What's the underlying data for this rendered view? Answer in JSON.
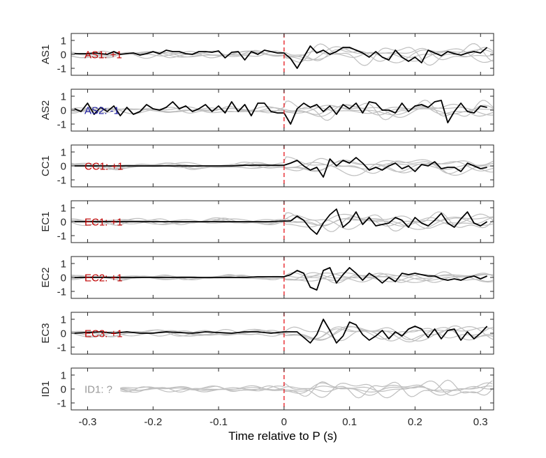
{
  "chart_data": {
    "type": "line",
    "xlabel": "Time relative to P (s)",
    "xlim": [
      -0.325,
      0.32
    ],
    "ylim": [
      -1.5,
      1.5
    ],
    "xticks": [
      -0.3,
      -0.2,
      -0.1,
      0,
      0.1,
      0.2,
      0.3
    ],
    "xtick_labels": [
      "-0.3",
      "-0.2",
      "-0.1",
      "0",
      "0.1",
      "0.2",
      "0.3"
    ],
    "yticks": [
      1,
      0,
      -1
    ],
    "ytick_labels": [
      "1",
      "0",
      "-1"
    ],
    "marker_x": 0,
    "colors": {
      "positive": "#c00000",
      "negative": "#1a1aa0",
      "unknown": "#999999",
      "trace": "#000000",
      "background_traces": "#bfbfbf",
      "marker": "#e8262b"
    },
    "panels": [
      {
        "ylabel": "AS1",
        "annotation": "AS1: +1",
        "annotation_color": "#c00000",
        "x": [
          -0.32,
          -0.31,
          -0.3,
          -0.29,
          -0.28,
          -0.27,
          -0.26,
          -0.25,
          -0.24,
          -0.23,
          -0.22,
          -0.21,
          -0.2,
          -0.19,
          -0.18,
          -0.17,
          -0.16,
          -0.15,
          -0.14,
          -0.13,
          -0.12,
          -0.11,
          -0.1,
          -0.09,
          -0.08,
          -0.07,
          -0.06,
          -0.05,
          -0.04,
          -0.03,
          -0.02,
          -0.01,
          0,
          0.01,
          0.02,
          0.03,
          0.04,
          0.05,
          0.06,
          0.07,
          0.08,
          0.09,
          0.1,
          0.11,
          0.12,
          0.13,
          0.14,
          0.15,
          0.16,
          0.17,
          0.18,
          0.19,
          0.2,
          0.21,
          0.22,
          0.23,
          0.24,
          0.25,
          0.26,
          0.27,
          0.28,
          0.29,
          0.3,
          0.31
        ],
        "y": [
          0.05,
          0.05,
          0.05,
          0.1,
          0.05,
          0,
          0.2,
          0,
          0.05,
          0.1,
          -0.05,
          0.05,
          0.2,
          0.05,
          0.3,
          0.2,
          0.2,
          0.05,
          0,
          0.2,
          0.2,
          0.15,
          0.25,
          -0.25,
          0.15,
          0.2,
          -0.4,
          0.2,
          0,
          0.3,
          0.2,
          0.1,
          0.1,
          -0.3,
          -1,
          -0.2,
          0.6,
          0.1,
          0.3,
          0,
          0.2,
          0.5,
          0.5,
          0.3,
          0.1,
          -0.2,
          0.2,
          -0.2,
          -0.4,
          0.3,
          -0.2,
          -0.5,
          -0.2,
          -0.6,
          0.3,
          0.1,
          -0.1,
          0.2,
          0.05,
          -0.05,
          0.1,
          0.2,
          0.1,
          0.5
        ]
      },
      {
        "ylabel": "AS2",
        "annotation": "AS2: -1",
        "annotation_color": "#1a1aa0",
        "x": [
          -0.32,
          -0.31,
          -0.3,
          -0.29,
          -0.28,
          -0.27,
          -0.26,
          -0.25,
          -0.24,
          -0.23,
          -0.22,
          -0.21,
          -0.2,
          -0.19,
          -0.18,
          -0.17,
          -0.16,
          -0.15,
          -0.14,
          -0.13,
          -0.12,
          -0.11,
          -0.1,
          -0.09,
          -0.08,
          -0.07,
          -0.06,
          -0.05,
          -0.04,
          -0.03,
          -0.02,
          -0.01,
          0,
          0.01,
          0.02,
          0.03,
          0.04,
          0.05,
          0.06,
          0.07,
          0.08,
          0.09,
          0.1,
          0.11,
          0.12,
          0.13,
          0.14,
          0.15,
          0.16,
          0.17,
          0.18,
          0.19,
          0.2,
          0.21,
          0.22,
          0.23,
          0.24,
          0.25,
          0.26,
          0.27,
          0.28,
          0.29,
          0.3,
          0.31
        ],
        "y": [
          0.1,
          -0.1,
          0.5,
          -0.3,
          0.2,
          -0.1,
          0.3,
          -0.4,
          0.2,
          -0.3,
          -0.1,
          0.4,
          0.1,
          0,
          0.2,
          0.6,
          0.1,
          0.3,
          -0.1,
          0.1,
          0.4,
          -0.1,
          0.3,
          -0.2,
          0.6,
          -0.1,
          0.4,
          -0.4,
          0.5,
          0.5,
          -0.1,
          -0.2,
          -0.2,
          -1,
          0.1,
          0.5,
          0.2,
          0.4,
          -0.1,
          0.3,
          -0.3,
          0.4,
          0.1,
          0.5,
          -0.2,
          0.6,
          0.5,
          0,
          0,
          -0.2,
          0.5,
          -0.1,
          0.3,
          0.4,
          0.2,
          0.6,
          0.7,
          -0.9,
          -0.1,
          0.5,
          -0.1,
          -0.2,
          0.3,
          0.2
        ]
      },
      {
        "ylabel": "CC1",
        "annotation": "CC1: +1",
        "annotation_color": "#c00000",
        "x": [
          -0.32,
          -0.3,
          -0.28,
          -0.26,
          -0.24,
          -0.22,
          -0.2,
          -0.18,
          -0.16,
          -0.14,
          -0.12,
          -0.1,
          -0.08,
          -0.06,
          -0.04,
          -0.02,
          0,
          0.01,
          0.02,
          0.03,
          0.04,
          0.05,
          0.06,
          0.07,
          0.08,
          0.09,
          0.1,
          0.11,
          0.12,
          0.13,
          0.14,
          0.15,
          0.16,
          0.17,
          0.18,
          0.19,
          0.2,
          0.21,
          0.22,
          0.23,
          0.24,
          0.25,
          0.26,
          0.27,
          0.28,
          0.29,
          0.3,
          0.31
        ],
        "y": [
          0,
          0,
          0,
          0,
          0,
          0,
          0,
          0,
          0,
          0,
          0,
          0,
          0,
          0.05,
          0.05,
          0.05,
          0.05,
          0.2,
          0.4,
          0,
          -0.3,
          -0.1,
          -0.8,
          0.5,
          0,
          0.4,
          0.2,
          0.6,
          0.2,
          -0.3,
          -0.1,
          -0.3,
          0,
          0.2,
          -0.2,
          0,
          -0.4,
          0.1,
          0,
          0.3,
          -0.2,
          -0.1,
          -0.1,
          -0.4,
          0.2,
          0,
          -0.2,
          -0.1
        ]
      },
      {
        "ylabel": "EC1",
        "annotation": "EC1: +1",
        "annotation_color": "#c00000",
        "x": [
          -0.32,
          -0.3,
          -0.28,
          -0.26,
          -0.24,
          -0.22,
          -0.2,
          -0.18,
          -0.16,
          -0.14,
          -0.12,
          -0.1,
          -0.08,
          -0.06,
          -0.04,
          -0.02,
          0,
          0.01,
          0.02,
          0.03,
          0.04,
          0.05,
          0.06,
          0.07,
          0.08,
          0.09,
          0.1,
          0.11,
          0.12,
          0.13,
          0.14,
          0.15,
          0.16,
          0.17,
          0.18,
          0.19,
          0.2,
          0.21,
          0.22,
          0.23,
          0.24,
          0.25,
          0.26,
          0.27,
          0.28,
          0.29,
          0.3,
          0.31
        ],
        "y": [
          0,
          0,
          0,
          0,
          0,
          0,
          0,
          0,
          0,
          0,
          0,
          0,
          0,
          0,
          0,
          0,
          0.05,
          0.05,
          0.4,
          0.1,
          -0.5,
          -0.9,
          -0.1,
          0.5,
          0.9,
          -0.4,
          0,
          0.7,
          -0.2,
          0.3,
          -0.3,
          -0.2,
          -0.1,
          0.3,
          0.1,
          -0.4,
          0.3,
          -0.1,
          -0.3,
          0.1,
          0.6,
          -0.1,
          -0.4,
          0.2,
          0.7,
          -0.1,
          -0.3,
          0
        ]
      },
      {
        "ylabel": "EC2",
        "annotation": "EC2: +1",
        "annotation_color": "#c00000",
        "x": [
          -0.32,
          -0.3,
          -0.28,
          -0.26,
          -0.24,
          -0.22,
          -0.2,
          -0.18,
          -0.16,
          -0.14,
          -0.12,
          -0.1,
          -0.08,
          -0.06,
          -0.04,
          -0.02,
          0,
          0.01,
          0.02,
          0.03,
          0.04,
          0.05,
          0.06,
          0.07,
          0.08,
          0.09,
          0.1,
          0.11,
          0.12,
          0.13,
          0.14,
          0.15,
          0.16,
          0.17,
          0.18,
          0.19,
          0.2,
          0.21,
          0.22,
          0.23,
          0.24,
          0.25,
          0.26,
          0.27,
          0.28,
          0.29,
          0.3,
          0.31
        ],
        "y": [
          0,
          0,
          0,
          0,
          0,
          0,
          0,
          0,
          0,
          0,
          0,
          0,
          0,
          0,
          0.05,
          0.05,
          0.05,
          0.2,
          0.5,
          0.3,
          -0.7,
          -0.9,
          0.5,
          0.7,
          -0.4,
          0.2,
          0.7,
          0.3,
          -0.2,
          0.3,
          0,
          -0.4,
          0,
          -0.3,
          0.3,
          0.2,
          0.3,
          0.2,
          0.1,
          0.1,
          -0.1,
          -0.2,
          -0.1,
          -0.2,
          0,
          0.1,
          -0.1,
          0.1
        ]
      },
      {
        "ylabel": "EC3",
        "annotation": "EC3: +1",
        "annotation_color": "#c00000",
        "x": [
          -0.32,
          -0.3,
          -0.28,
          -0.26,
          -0.24,
          -0.22,
          -0.2,
          -0.18,
          -0.16,
          -0.14,
          -0.12,
          -0.1,
          -0.08,
          -0.06,
          -0.04,
          -0.02,
          0,
          0.01,
          0.02,
          0.03,
          0.04,
          0.05,
          0.06,
          0.07,
          0.08,
          0.09,
          0.1,
          0.11,
          0.12,
          0.13,
          0.14,
          0.15,
          0.16,
          0.17,
          0.18,
          0.19,
          0.2,
          0.21,
          0.22,
          0.23,
          0.24,
          0.25,
          0.26,
          0.27,
          0.28,
          0.29,
          0.3,
          0.31
        ],
        "y": [
          0,
          0.05,
          0.1,
          0,
          0.1,
          0,
          0,
          0.1,
          0.05,
          0,
          0.1,
          0.05,
          0,
          0.1,
          0.1,
          0,
          0.1,
          0.1,
          0.1,
          -0.3,
          -0.7,
          -0.1,
          1,
          0.2,
          -0.7,
          -0.2,
          0.8,
          0.6,
          -0.1,
          -0.5,
          -0.2,
          0.2,
          -0.4,
          0.1,
          -0.2,
          0.3,
          0.5,
          0.3,
          -0.3,
          0.3,
          -0.4,
          0.2,
          0.3,
          -0.5,
          0.1,
          -0.4,
          0,
          0.5
        ]
      },
      {
        "ylabel": "ID1",
        "annotation": "ID1: ?",
        "annotation_color": "#999999",
        "x": [],
        "y": []
      }
    ]
  }
}
